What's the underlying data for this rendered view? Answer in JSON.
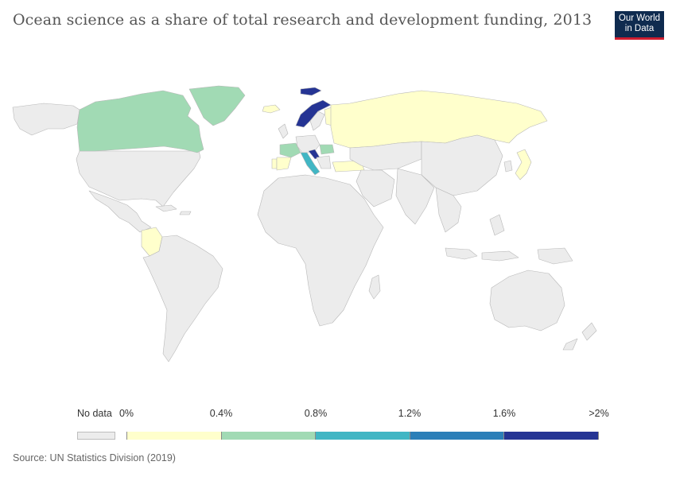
{
  "title": "Ocean science as a share of total research and development funding, 2013",
  "logo": {
    "line1": "Our World",
    "line2": "in Data"
  },
  "legend": {
    "no_data_label": "No data",
    "tick_labels": [
      "0%",
      "0.4%",
      "0.8%",
      "1.2%",
      "1.6%",
      ">2%"
    ],
    "bin_colors": [
      "#ffffcc",
      "#a1dab4",
      "#41b6c4",
      "#2c7fb8",
      "#253494"
    ],
    "no_data_color": "#ececec"
  },
  "source": "Source: UN Statistics Division (2019)",
  "chart_data": {
    "type": "map",
    "metric": "Ocean science as a share of total research and development funding",
    "year": 2013,
    "scale_bins": [
      "0-0.4%",
      "0.4-0.8%",
      "0.8-1.2%",
      "1.2-1.6%",
      ">1.6%"
    ],
    "countries": [
      {
        "name": "Norway",
        "bin": 4
      },
      {
        "name": "Croatia",
        "bin": 4
      },
      {
        "name": "Italy",
        "bin": 2
      },
      {
        "name": "Canada",
        "bin": 1
      },
      {
        "name": "Greenland",
        "bin": 1
      },
      {
        "name": "France",
        "bin": 1
      },
      {
        "name": "Romania",
        "bin": 1
      },
      {
        "name": "Russia",
        "bin": 0
      },
      {
        "name": "Finland",
        "bin": 0
      },
      {
        "name": "Portugal",
        "bin": 0
      },
      {
        "name": "Spain",
        "bin": 0
      },
      {
        "name": "Turkey",
        "bin": 0
      },
      {
        "name": "Japan",
        "bin": 0
      },
      {
        "name": "Colombia",
        "bin": 0
      },
      {
        "name": "Iceland",
        "bin": 0
      }
    ]
  }
}
